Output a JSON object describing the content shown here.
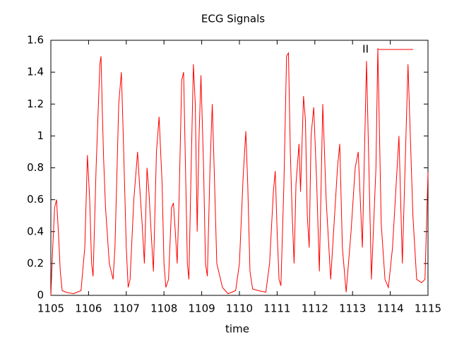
{
  "chart_data": {
    "type": "line",
    "title": "ECG Signals",
    "xlabel": "time",
    "xlim": [
      1105,
      1115
    ],
    "xticks": [
      1105,
      1106,
      1107,
      1108,
      1109,
      1110,
      1111,
      1112,
      1113,
      1114,
      1115
    ],
    "ylim": [
      0,
      1.6
    ],
    "yticks": [
      0,
      0.2,
      0.4,
      0.6,
      0.8,
      1,
      1.2,
      1.4,
      1.6
    ],
    "legend": "top-right",
    "x": [
      1105.0,
      1105.05,
      1105.1,
      1105.15,
      1105.2,
      1105.25,
      1105.3,
      1105.4,
      1105.6,
      1105.8,
      1105.9,
      1105.97,
      1106.03,
      1106.08,
      1106.12,
      1106.2,
      1106.3,
      1106.33,
      1106.36,
      1106.4,
      1106.45,
      1106.55,
      1106.65,
      1106.7,
      1106.8,
      1106.87,
      1106.92,
      1107.0,
      1107.05,
      1107.1,
      1107.2,
      1107.3,
      1107.35,
      1107.42,
      1107.48,
      1107.55,
      1107.6,
      1107.67,
      1107.72,
      1107.8,
      1107.87,
      1107.95,
      1108.0,
      1108.05,
      1108.12,
      1108.2,
      1108.25,
      1108.3,
      1108.35,
      1108.4,
      1108.47,
      1108.52,
      1108.57,
      1108.62,
      1108.66,
      1108.72,
      1108.78,
      1108.83,
      1108.88,
      1108.93,
      1108.98,
      1109.05,
      1109.1,
      1109.15,
      1109.22,
      1109.28,
      1109.33,
      1109.4,
      1109.55,
      1109.7,
      1109.9,
      1110.0,
      1110.1,
      1110.17,
      1110.22,
      1110.28,
      1110.35,
      1110.5,
      1110.7,
      1110.8,
      1110.9,
      1110.95,
      1111.0,
      1111.05,
      1111.1,
      1111.18,
      1111.25,
      1111.3,
      1111.35,
      1111.4,
      1111.45,
      1111.5,
      1111.58,
      1111.62,
      1111.7,
      1111.75,
      1111.8,
      1111.85,
      1111.9,
      1111.97,
      1112.05,
      1112.12,
      1112.21,
      1112.3,
      1112.42,
      1112.6,
      1112.66,
      1112.73,
      1112.83,
      1112.96,
      1113.07,
      1113.15,
      1113.26,
      1113.37,
      1113.5,
      1113.62,
      1113.67,
      1113.76,
      1113.86,
      1113.95,
      1114.06,
      1114.23,
      1114.32,
      1114.47,
      1114.6,
      1114.7,
      1114.83,
      1114.92,
      1115.0
    ],
    "series": [
      {
        "name": "II",
        "color": "#ff0000",
        "values": [
          0.0,
          0.3,
          0.55,
          0.6,
          0.4,
          0.15,
          0.03,
          0.02,
          0.01,
          0.03,
          0.3,
          0.88,
          0.6,
          0.2,
          0.12,
          0.8,
          1.45,
          1.5,
          1.2,
          0.85,
          0.55,
          0.2,
          0.1,
          0.3,
          1.2,
          1.4,
          1.0,
          0.3,
          0.05,
          0.1,
          0.6,
          0.9,
          0.7,
          0.45,
          0.2,
          0.8,
          0.65,
          0.35,
          0.15,
          0.9,
          1.12,
          0.7,
          0.2,
          0.05,
          0.1,
          0.55,
          0.58,
          0.4,
          0.2,
          0.6,
          1.35,
          1.4,
          0.8,
          0.2,
          0.1,
          0.8,
          1.45,
          1.2,
          0.4,
          1.0,
          1.38,
          0.8,
          0.2,
          0.12,
          0.8,
          1.2,
          0.8,
          0.2,
          0.05,
          0.01,
          0.03,
          0.2,
          0.75,
          1.03,
          0.7,
          0.15,
          0.04,
          0.03,
          0.02,
          0.2,
          0.65,
          0.78,
          0.4,
          0.1,
          0.06,
          0.7,
          1.5,
          1.52,
          0.9,
          0.5,
          0.2,
          0.7,
          0.95,
          0.65,
          1.25,
          1.1,
          0.5,
          0.3,
          1.0,
          1.18,
          0.7,
          0.15,
          1.2,
          0.6,
          0.1,
          0.8,
          0.95,
          0.3,
          0.02,
          0.4,
          0.8,
          0.9,
          0.3,
          1.47,
          0.1,
          0.8,
          1.55,
          0.45,
          0.1,
          0.05,
          0.3,
          1.0,
          0.2,
          1.45,
          0.5,
          0.1,
          0.08,
          0.1,
          0.77
        ]
      }
    ]
  }
}
